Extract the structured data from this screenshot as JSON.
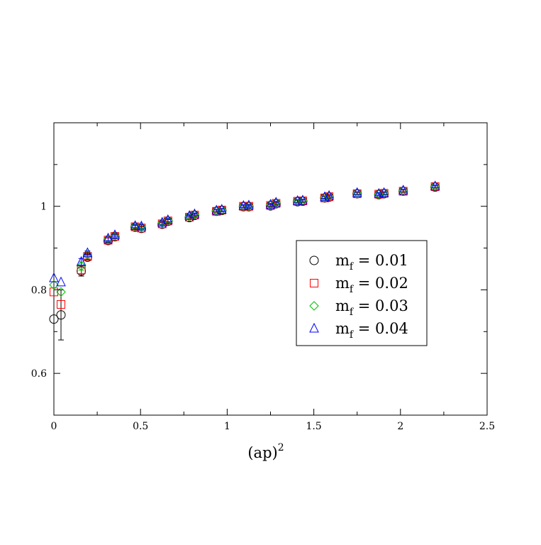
{
  "chart_data": {
    "type": "scatter",
    "title": "",
    "xlabel": "(ap)",
    "xlabel_superscript": "2",
    "ylabel": "",
    "xlim": [
      0,
      2.5
    ],
    "ylim": [
      0.5,
      1.2
    ],
    "x_ticks": [
      0,
      0.5,
      1,
      1.5,
      2,
      2.5
    ],
    "x_tick_labels": [
      "0",
      "0.5",
      "1",
      "1.5",
      "2",
      "2.5"
    ],
    "y_ticks": [
      0.6,
      0.8,
      1.0
    ],
    "y_tick_labels": [
      "0.6",
      "0.8",
      "1"
    ],
    "y_minor_ticks": [
      0.7,
      0.9,
      1.1
    ],
    "grid": false,
    "legend_position": "center-right",
    "series": [
      {
        "name": "m_f = 0.01",
        "label_main": "m",
        "label_sub": "f",
        "label_value": " = 0.01",
        "marker": "circle",
        "color": "#000000",
        "x": [
          0.0,
          0.041,
          0.158,
          0.194,
          0.313,
          0.352,
          0.469,
          0.505,
          0.625,
          0.658,
          0.782,
          0.812,
          0.938,
          0.969,
          1.094,
          1.125,
          1.25,
          1.282,
          1.406,
          1.436,
          1.563,
          1.588,
          1.75,
          1.875,
          1.905,
          2.016,
          2.2
        ],
        "y": [
          0.73,
          0.74,
          0.845,
          0.878,
          0.918,
          0.927,
          0.95,
          0.947,
          0.957,
          0.964,
          0.973,
          0.978,
          0.988,
          0.99,
          0.999,
          0.999,
          1.001,
          1.006,
          1.011,
          1.012,
          1.02,
          1.022,
          1.03,
          1.028,
          1.03,
          1.036,
          1.046
        ],
        "err": [
          0,
          0.06,
          0.012,
          0.006,
          0.006,
          0.004,
          0.004,
          0.004,
          0.004,
          0.004,
          0.004,
          0.003,
          0.003,
          0.003,
          0.003,
          0.003,
          0.003,
          0.003,
          0.003,
          0.003,
          0.003,
          0.003,
          0.003,
          0.003,
          0.003,
          0.003,
          0.003
        ]
      },
      {
        "name": "m_f = 0.02",
        "label_main": "m",
        "label_sub": "f",
        "label_value": " = 0.02",
        "marker": "square",
        "color": "#ff0000",
        "x": [
          0.0,
          0.041,
          0.158,
          0.194,
          0.313,
          0.352,
          0.469,
          0.505,
          0.625,
          0.658,
          0.782,
          0.812,
          0.938,
          0.969,
          1.094,
          1.125,
          1.25,
          1.282,
          1.406,
          1.436,
          1.563,
          1.588,
          1.75,
          1.875,
          1.905,
          2.016,
          2.2
        ],
        "y": [
          0.795,
          0.765,
          0.848,
          0.88,
          0.919,
          0.928,
          0.951,
          0.948,
          0.958,
          0.965,
          0.974,
          0.979,
          0.988,
          0.991,
          1.0,
          1.0,
          1.002,
          1.007,
          1.012,
          1.013,
          1.02,
          1.023,
          1.03,
          1.029,
          1.031,
          1.036,
          1.047
        ],
        "err": [
          0,
          0,
          0.01,
          0.006,
          0.005,
          0.004,
          0.004,
          0.004,
          0.004,
          0.004,
          0.004,
          0.003,
          0.003,
          0.003,
          0.003,
          0.003,
          0.003,
          0.003,
          0.003,
          0.003,
          0.003,
          0.003,
          0.003,
          0.003,
          0.003,
          0.003,
          0.003
        ]
      },
      {
        "name": "m_f = 0.03",
        "label_main": "m",
        "label_sub": "f",
        "label_value": " = 0.03",
        "marker": "diamond",
        "color": "#00c000",
        "x": [
          0.0,
          0.041,
          0.158,
          0.194,
          0.313,
          0.352,
          0.469,
          0.505,
          0.625,
          0.658,
          0.782,
          0.812,
          0.938,
          0.969,
          1.094,
          1.125,
          1.25,
          1.282,
          1.406,
          1.436,
          1.563,
          1.588,
          1.75,
          1.875,
          1.905,
          2.016,
          2.2
        ],
        "y": [
          0.812,
          0.795,
          0.857,
          0.884,
          0.921,
          0.929,
          0.952,
          0.95,
          0.96,
          0.966,
          0.975,
          0.98,
          0.989,
          0.991,
          1.0,
          1.001,
          1.003,
          1.008,
          1.012,
          1.013,
          1.021,
          1.024,
          1.031,
          1.029,
          1.031,
          1.037,
          1.047
        ],
        "err": [
          0,
          0,
          0.01,
          0.006,
          0.005,
          0.004,
          0.004,
          0.004,
          0.004,
          0.004,
          0.004,
          0.003,
          0.003,
          0.003,
          0.003,
          0.003,
          0.003,
          0.003,
          0.003,
          0.003,
          0.003,
          0.003,
          0.003,
          0.003,
          0.003,
          0.003,
          0.003
        ]
      },
      {
        "name": "m_f = 0.04",
        "label_main": "m",
        "label_sub": "f",
        "label_value": " = 0.04",
        "marker": "triangle",
        "color": "#0000ff",
        "x": [
          0.0,
          0.041,
          0.158,
          0.194,
          0.313,
          0.352,
          0.469,
          0.505,
          0.625,
          0.658,
          0.782,
          0.812,
          0.938,
          0.969,
          1.094,
          1.125,
          1.25,
          1.282,
          1.406,
          1.436,
          1.563,
          1.588,
          1.75,
          1.875,
          1.905,
          2.016,
          2.2
        ],
        "y": [
          0.828,
          0.818,
          0.867,
          0.888,
          0.923,
          0.931,
          0.953,
          0.952,
          0.961,
          0.967,
          0.977,
          0.981,
          0.99,
          0.992,
          1.001,
          1.002,
          1.004,
          1.009,
          1.013,
          1.014,
          1.022,
          1.025,
          1.032,
          1.03,
          1.032,
          1.038,
          1.048
        ],
        "err": [
          0,
          0,
          0.008,
          0.005,
          0.005,
          0.004,
          0.004,
          0.004,
          0.004,
          0.004,
          0.003,
          0.003,
          0.003,
          0.003,
          0.003,
          0.003,
          0.003,
          0.003,
          0.003,
          0.003,
          0.003,
          0.003,
          0.003,
          0.003,
          0.003,
          0.003,
          0.003
        ]
      }
    ]
  }
}
